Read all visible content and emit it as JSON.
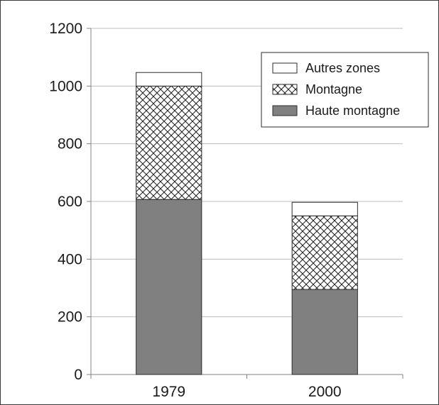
{
  "chart_data": {
    "type": "bar",
    "stacked": true,
    "title": "",
    "xlabel": "",
    "ylabel": "",
    "categories": [
      "1979",
      "2000"
    ],
    "series": [
      {
        "name": "Haute montagne",
        "values": [
          607,
          295
        ],
        "fill": "#808080",
        "pattern": "solid"
      },
      {
        "name": "Montagne",
        "values": [
          393,
          255
        ],
        "fill": "#ffffff",
        "pattern": "crosshatch"
      },
      {
        "name": "Autres zones",
        "values": [
          47,
          47
        ],
        "fill": "#ffffff",
        "pattern": "none"
      }
    ],
    "legend_order": [
      "Autres zones",
      "Montagne",
      "Haute montagne"
    ],
    "legend_position": "top-right",
    "ylim": [
      0,
      1200
    ],
    "yticks": [
      0,
      200,
      400,
      600,
      800,
      1000,
      1200
    ],
    "grid": true,
    "colors": {
      "grid": "#bdbdbd",
      "axis": "#808080",
      "bar_edge": "#2b2b2b",
      "text": "#1a1a1a"
    }
  }
}
